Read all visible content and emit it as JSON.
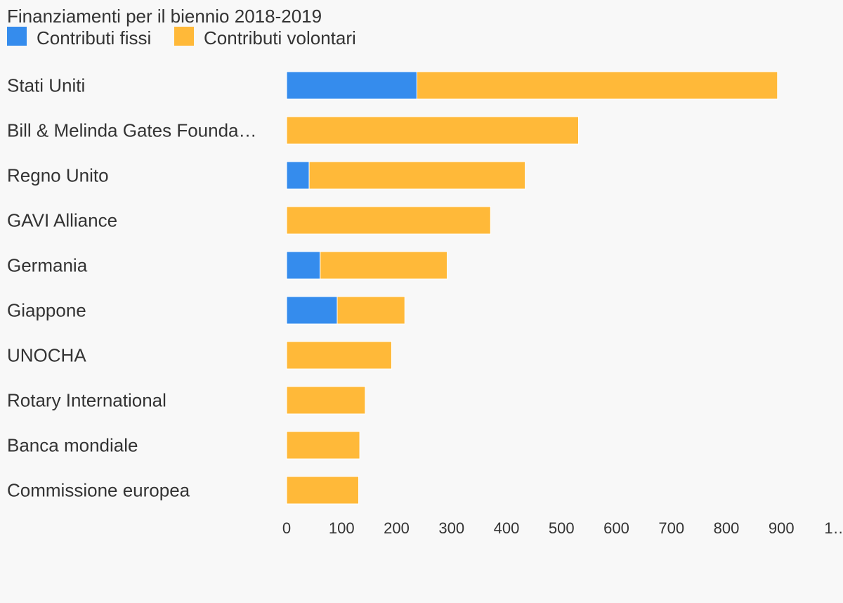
{
  "chart_data": {
    "type": "bar",
    "orientation": "horizontal",
    "stacked": true,
    "title": "Finanziamenti per il biennio 2018-2019",
    "categories": [
      "Stati Uniti",
      "Bill & Melinda Gates Founda…",
      "Regno Unito",
      "GAVI Alliance",
      "Germania",
      "Giappone",
      "UNOCHA",
      "Rotary International",
      "Banca mondiale",
      "Commissione europea"
    ],
    "series": [
      {
        "name": "Contributi fissi",
        "color": "#358ced",
        "values": [
          237,
          0,
          41,
          0,
          61,
          92,
          0,
          0,
          0,
          0
        ]
      },
      {
        "name": "Contributi volontari",
        "color": "#ffb939",
        "values": [
          656,
          531,
          393,
          371,
          231,
          123,
          191,
          143,
          133,
          131
        ]
      }
    ],
    "xticks": [
      "0",
      "100",
      "200",
      "300",
      "400",
      "500",
      "600",
      "700",
      "800",
      "900",
      "1…"
    ],
    "xlim": [
      0,
      1000
    ],
    "legend_position": "top-left",
    "grid": false
  }
}
